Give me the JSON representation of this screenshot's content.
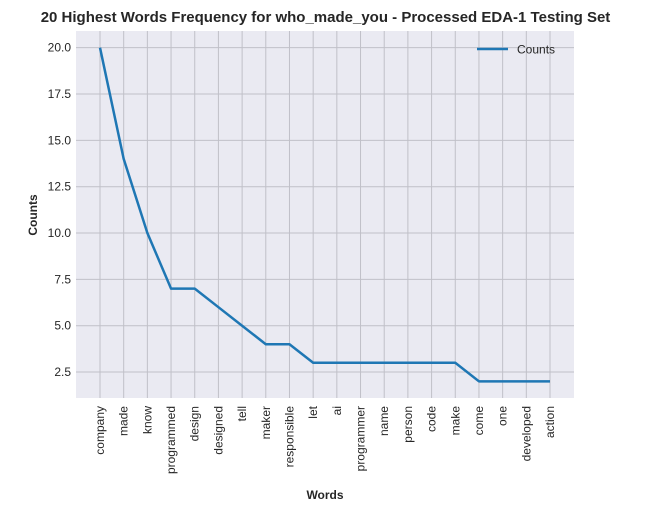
{
  "chart_data": {
    "type": "line",
    "title": "20 Highest Words Frequency for who_made_you - Processed EDA-1 Testing Set",
    "xlabel": "Words",
    "ylabel": "Counts",
    "categories": [
      "company",
      "made",
      "know",
      "programmed",
      "design",
      "designed",
      "tell",
      "maker",
      "responsible",
      "let",
      "ai",
      "programmer",
      "name",
      "person",
      "code",
      "make",
      "come",
      "one",
      "developed",
      "action"
    ],
    "series": [
      {
        "name": "Counts",
        "values": [
          20,
          14,
          10,
          7,
          7,
          6,
          5,
          4,
          4,
          3,
          3,
          3,
          3,
          3,
          3,
          3,
          2,
          2,
          2,
          2
        ]
      }
    ],
    "ylim": [
      1.1,
      20.9
    ],
    "yticks": [
      2.5,
      5.0,
      7.5,
      10.0,
      12.5,
      15.0,
      17.5,
      20.0
    ],
    "ytick_labels": [
      "2.5",
      "5.0",
      "7.5",
      "10.0",
      "12.5",
      "15.0",
      "17.5",
      "20.0"
    ],
    "grid": true,
    "legend": "top-right",
    "colors": {
      "line": "#1f77b4",
      "plot_bg": "#eaeaf2",
      "grid": "#c0c0c8"
    }
  }
}
